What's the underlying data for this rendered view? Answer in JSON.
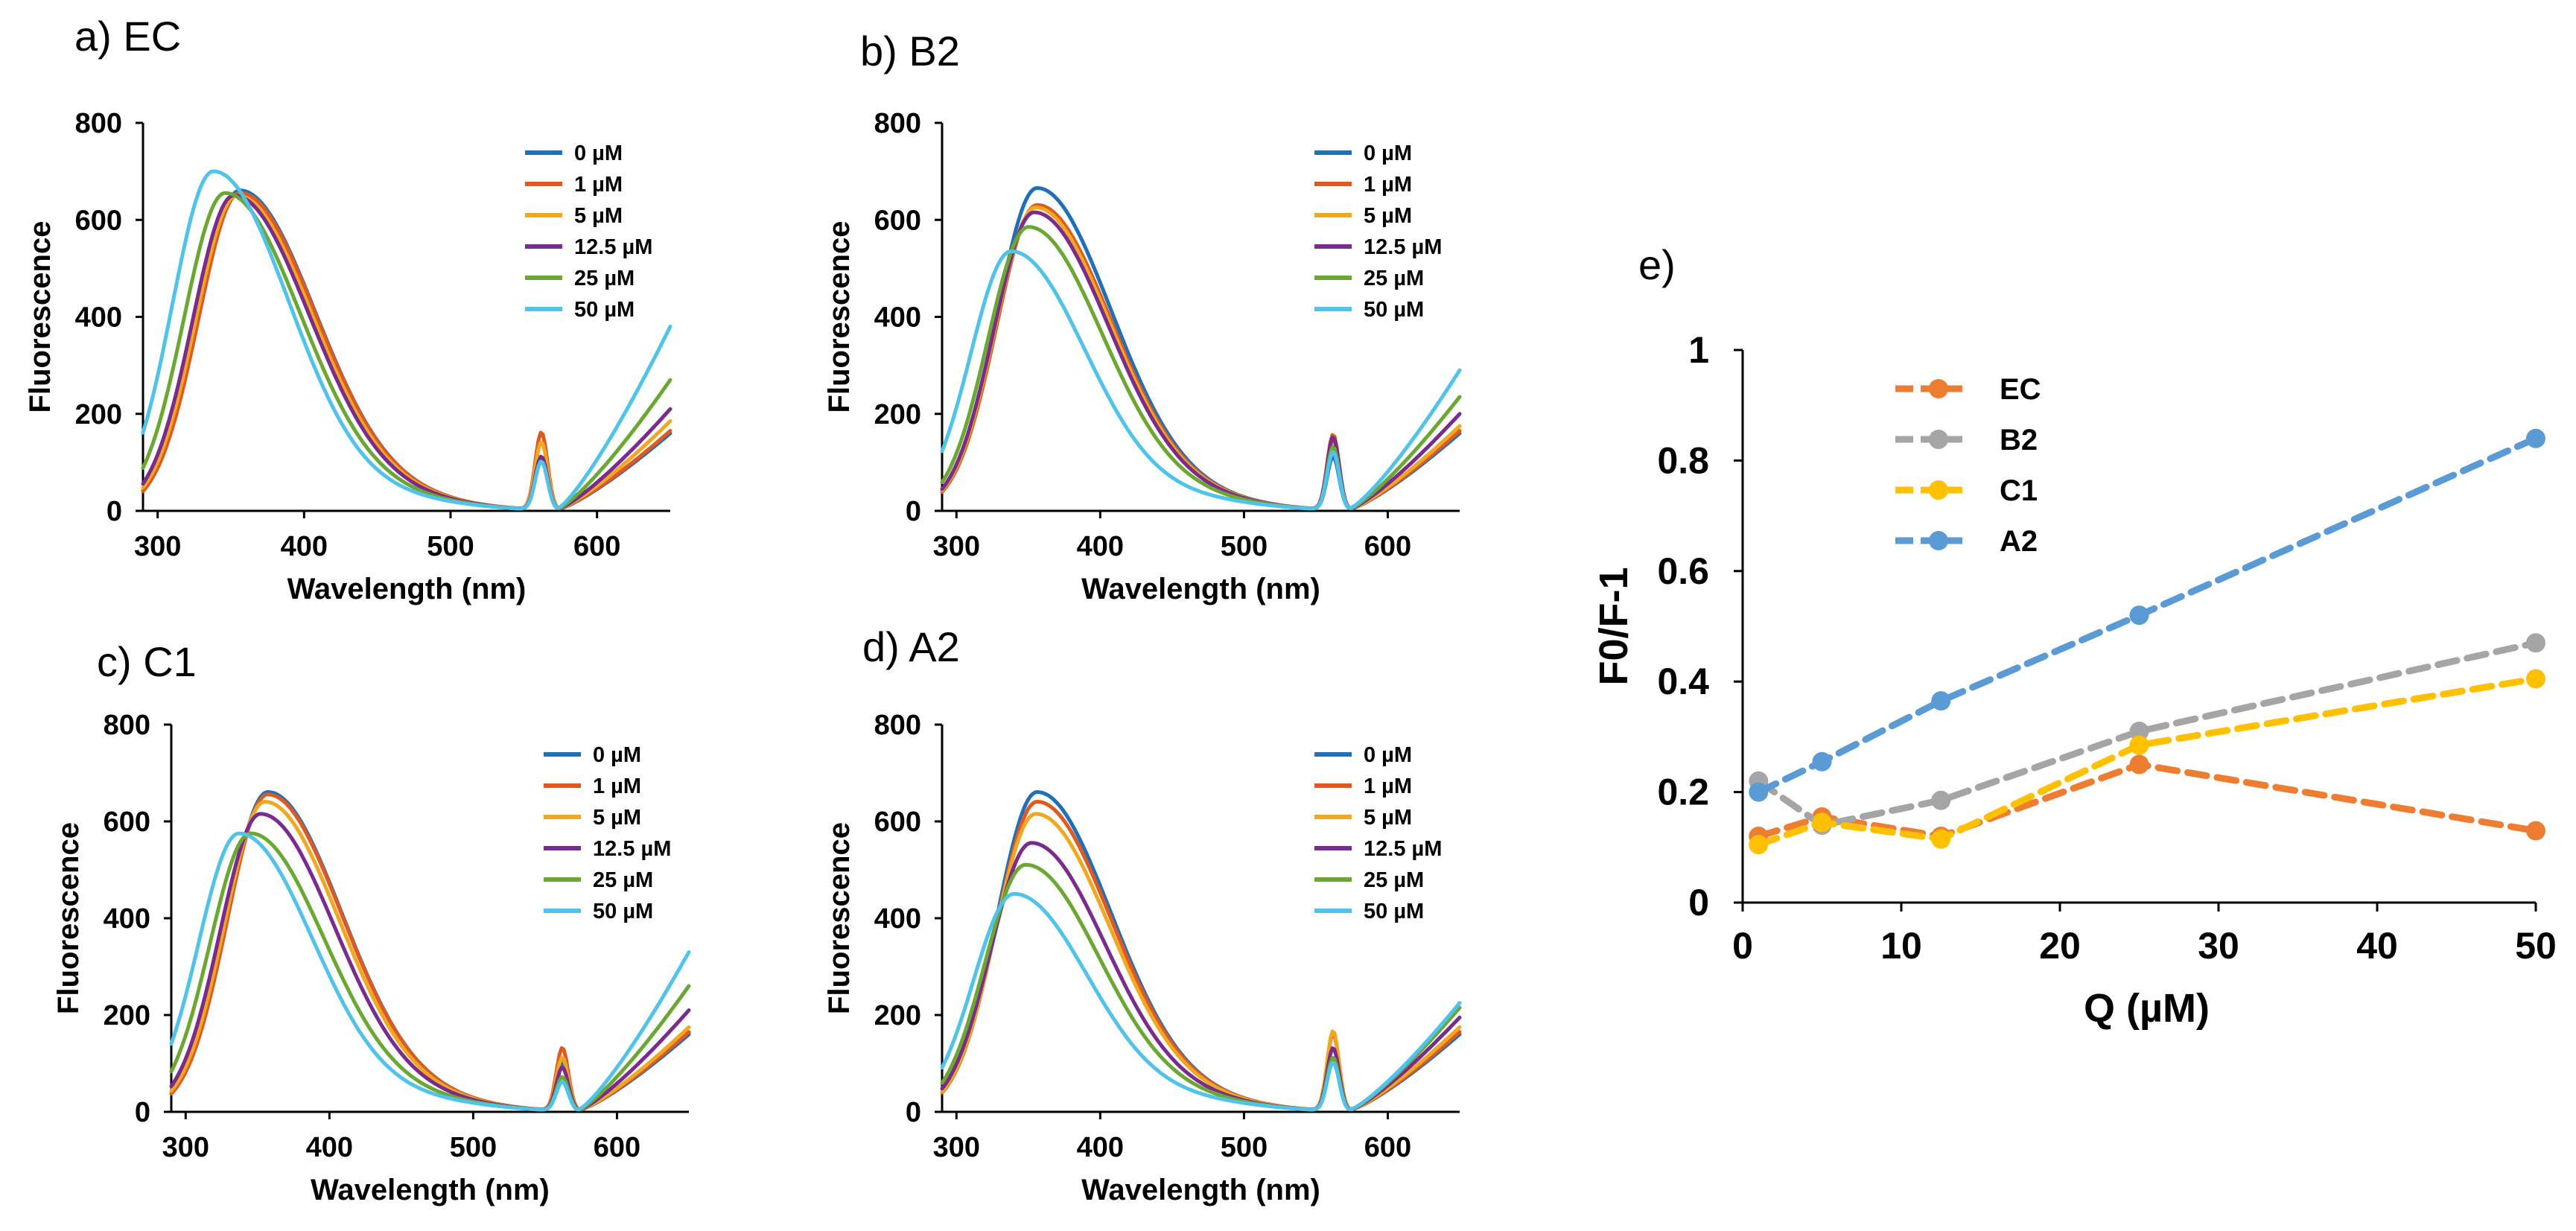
{
  "panels": [
    {
      "label": "a) EC",
      "chart_data": {
        "type": "line",
        "xlabel": "Wavelength (nm)",
        "ylabel": "Fluorescence",
        "xlim": [
          290,
          650
        ],
        "ylim": [
          0,
          800
        ],
        "xticks": [
          300,
          400,
          500,
          600
        ],
        "yticks": [
          0,
          200,
          400,
          600,
          800
        ],
        "series": [
          {
            "name": "0 µM",
            "color": "#1f6fba",
            "peak_x": 356,
            "peak_y": 660,
            "red_peak": 110,
            "tail_end": 160
          },
          {
            "name": "1 µM",
            "color": "#e05a20",
            "peak_x": 356,
            "peak_y": 655,
            "red_peak": 160,
            "tail_end": 165
          },
          {
            "name": "5 µM",
            "color": "#f0a820",
            "peak_x": 354,
            "peak_y": 650,
            "red_peak": 140,
            "tail_end": 185
          },
          {
            "name": "12.5 µM",
            "color": "#7b2b8f",
            "peak_x": 352,
            "peak_y": 650,
            "red_peak": 110,
            "tail_end": 210
          },
          {
            "name": "25 µM",
            "color": "#6aa832",
            "peak_x": 346,
            "peak_y": 655,
            "red_peak": 100,
            "tail_end": 270
          },
          {
            "name": "50 µM",
            "color": "#4fc3ea",
            "peak_x": 338,
            "peak_y": 700,
            "red_peak": 100,
            "tail_end": 380
          }
        ]
      }
    },
    {
      "label": "b) B2",
      "chart_data": {
        "type": "line",
        "xlabel": "Wavelength (nm)",
        "ylabel": "Fluorescence",
        "xlim": [
          290,
          650
        ],
        "ylim": [
          0,
          800
        ],
        "xticks": [
          300,
          400,
          500,
          600
        ],
        "yticks": [
          0,
          200,
          400,
          600,
          800
        ],
        "series": [
          {
            "name": "0 µM",
            "color": "#1f6fba",
            "peak_x": 356,
            "peak_y": 665,
            "red_peak": 110,
            "tail_end": 160
          },
          {
            "name": "1 µM",
            "color": "#e05a20",
            "peak_x": 356,
            "peak_y": 630,
            "red_peak": 155,
            "tail_end": 165
          },
          {
            "name": "5 µM",
            "color": "#f0a820",
            "peak_x": 355,
            "peak_y": 625,
            "red_peak": 140,
            "tail_end": 175
          },
          {
            "name": "12.5 µM",
            "color": "#7b2b8f",
            "peak_x": 354,
            "peak_y": 615,
            "red_peak": 150,
            "tail_end": 200
          },
          {
            "name": "25 µM",
            "color": "#6aa832",
            "peak_x": 350,
            "peak_y": 585,
            "red_peak": 130,
            "tail_end": 235
          },
          {
            "name": "50 µM",
            "color": "#4fc3ea",
            "peak_x": 338,
            "peak_y": 535,
            "red_peak": 120,
            "tail_end": 290
          }
        ]
      }
    },
    {
      "label": "c) C1",
      "chart_data": {
        "type": "line",
        "xlabel": "Wavelength (nm)",
        "ylabel": "Fluorescence",
        "xlim": [
          290,
          650
        ],
        "ylim": [
          0,
          800
        ],
        "xticks": [
          300,
          400,
          500,
          600
        ],
        "yticks": [
          0,
          200,
          400,
          600,
          800
        ],
        "series": [
          {
            "name": "0 µM",
            "color": "#1f6fba",
            "peak_x": 357,
            "peak_y": 660,
            "red_peak": 100,
            "tail_end": 160
          },
          {
            "name": "1 µM",
            "color": "#e05a20",
            "peak_x": 357,
            "peak_y": 655,
            "red_peak": 130,
            "tail_end": 165
          },
          {
            "name": "5 µM",
            "color": "#f0a820",
            "peak_x": 355,
            "peak_y": 640,
            "red_peak": 110,
            "tail_end": 175
          },
          {
            "name": "12.5 µM",
            "color": "#7b2b8f",
            "peak_x": 352,
            "peak_y": 615,
            "red_peak": 90,
            "tail_end": 210
          },
          {
            "name": "25 µM",
            "color": "#6aa832",
            "peak_x": 345,
            "peak_y": 575,
            "red_peak": 70,
            "tail_end": 260
          },
          {
            "name": "50 µM",
            "color": "#4fc3ea",
            "peak_x": 337,
            "peak_y": 575,
            "red_peak": 60,
            "tail_end": 330
          }
        ]
      }
    },
    {
      "label": "d) A2",
      "chart_data": {
        "type": "line",
        "xlabel": "Wavelength (nm)",
        "ylabel": "Fluorescence",
        "xlim": [
          290,
          650
        ],
        "ylim": [
          0,
          800
        ],
        "xticks": [
          300,
          400,
          500,
          600
        ],
        "yticks": [
          0,
          200,
          400,
          600,
          800
        ],
        "series": [
          {
            "name": "0 µM",
            "color": "#1f6fba",
            "peak_x": 356,
            "peak_y": 660,
            "red_peak": 110,
            "tail_end": 160
          },
          {
            "name": "1 µM",
            "color": "#e05a20",
            "peak_x": 356,
            "peak_y": 640,
            "red_peak": 160,
            "tail_end": 165
          },
          {
            "name": "5 µM",
            "color": "#f0a820",
            "peak_x": 355,
            "peak_y": 615,
            "red_peak": 165,
            "tail_end": 175
          },
          {
            "name": "12.5 µM",
            "color": "#7b2b8f",
            "peak_x": 352,
            "peak_y": 555,
            "red_peak": 130,
            "tail_end": 195
          },
          {
            "name": "25 µM",
            "color": "#6aa832",
            "peak_x": 348,
            "peak_y": 510,
            "red_peak": 110,
            "tail_end": 215
          },
          {
            "name": "50 µM",
            "color": "#4fc3ea",
            "peak_x": 340,
            "peak_y": 450,
            "red_peak": 100,
            "tail_end": 225
          }
        ]
      }
    },
    {
      "label": "e)",
      "chart_data": {
        "type": "line",
        "style": "dashed-with-markers",
        "xlabel": "Q (µM)",
        "ylabel": "F0/F-1",
        "xlim": [
          0,
          50
        ],
        "ylim": [
          0,
          1
        ],
        "xticks": [
          0,
          10,
          20,
          30,
          40,
          50
        ],
        "yticks": [
          0,
          0.2,
          0.4,
          0.6,
          0.8,
          1
        ],
        "ytick_labels": [
          "0",
          "0.2",
          "0.4",
          "0.6",
          "0.8",
          "1"
        ],
        "x": [
          1,
          5,
          12.5,
          25,
          50
        ],
        "series": [
          {
            "name": "EC",
            "color": "#ed7d31",
            "values": [
              0.12,
              0.155,
              0.12,
              0.25,
              0.13
            ]
          },
          {
            "name": "B2",
            "color": "#a5a5a5",
            "values": [
              0.22,
              0.14,
              0.185,
              0.31,
              0.47
            ]
          },
          {
            "name": "C1",
            "color": "#ffc000",
            "values": [
              0.105,
              0.145,
              0.115,
              0.285,
              0.405
            ]
          },
          {
            "name": "A2",
            "color": "#5b9bd5",
            "values": [
              0.2,
              0.255,
              0.365,
              0.52,
              0.84
            ]
          }
        ]
      }
    }
  ]
}
